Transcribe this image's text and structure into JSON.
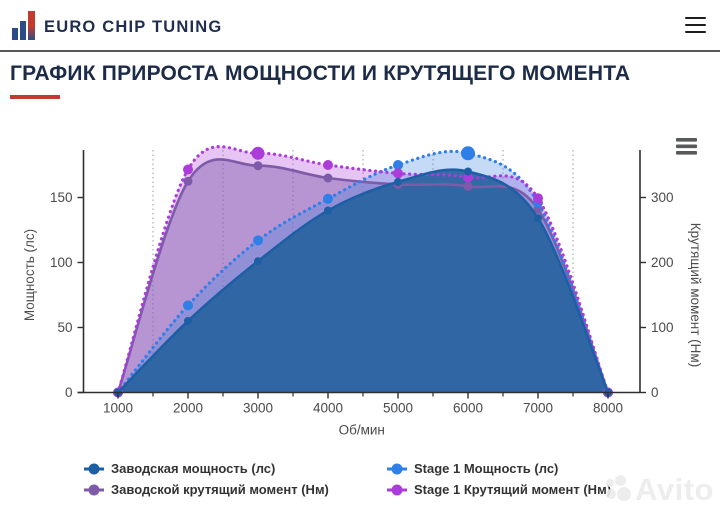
{
  "header": {
    "brand": "EURO CHIP TUNING",
    "menu_icon": "hamburger-icon"
  },
  "title": {
    "text": "ГРАФИК ПРИРОСТА МОЩНОСТИ И КРУТЯЩЕГО МОМЕНТА"
  },
  "chart_data": {
    "type": "area",
    "x": [
      1000,
      2000,
      3000,
      4000,
      5000,
      6000,
      7000,
      8000
    ],
    "xlabel": "Об/мин",
    "ylabel_left": "Мощность (лс)",
    "ylabel_right": "Крутящий момент (Нм)",
    "xticks": [
      1000,
      2000,
      3000,
      4000,
      5000,
      6000,
      7000,
      8000
    ],
    "minor_xticks": [
      1500,
      2500,
      3500,
      4500,
      5500,
      6500,
      7500
    ],
    "yticks_left": [
      0,
      50,
      100,
      150
    ],
    "yticks_right": [
      0,
      100,
      200,
      300
    ],
    "ylim_left": [
      0,
      186
    ],
    "ylim_right": [
      0,
      373
    ],
    "grid": "vertical-dotted",
    "legend_position": "bottom",
    "series": [
      {
        "name": "Заводская мощность (лс)",
        "axis": "left",
        "line": "solid",
        "color": "#1d5fa5",
        "fill": "rgba(42,99,160,0.93)",
        "marker_r": 4,
        "values": [
          0,
          55,
          101,
          140,
          162,
          170,
          134,
          0
        ]
      },
      {
        "name": "Stage 1 Мощность (лс)",
        "axis": "left",
        "line": "dotted",
        "color": "#2e7fe8",
        "fill": "rgba(61,133,224,0.30)",
        "marker_r": 5,
        "peak_index": 5,
        "peak_r": 7,
        "values": [
          0,
          67,
          117,
          149,
          175,
          184,
          146,
          0
        ]
      },
      {
        "name": "Заводской крутящий момент (Нм)",
        "axis": "right",
        "line": "solid",
        "color": "#7d5ba8",
        "fill": "rgba(126,91,168,0.45)",
        "marker_r": 4.5,
        "values": [
          0,
          325,
          349,
          330,
          320,
          317,
          282,
          0
        ]
      },
      {
        "name": "Stage 1 Крутящий момент (Нм)",
        "axis": "right",
        "line": "dotted",
        "color": "#ab3cda",
        "fill": "rgba(171,60,218,0.30)",
        "marker_r": 5,
        "peak_index": 2,
        "peak_r": 6.5,
        "values": [
          0,
          343,
          368,
          350,
          337,
          331,
          299,
          0
        ]
      }
    ]
  },
  "legend": {
    "columns": [
      [
        0,
        2
      ],
      [
        1,
        3
      ]
    ]
  },
  "watermark": {
    "text": "Avito"
  }
}
